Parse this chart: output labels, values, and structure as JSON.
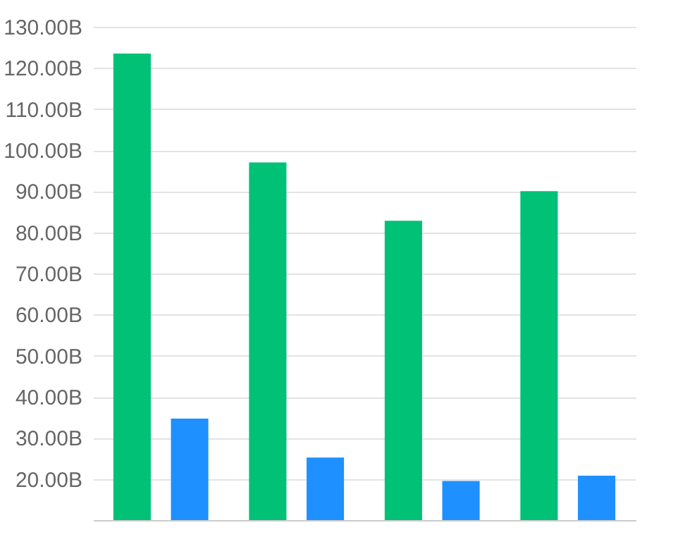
{
  "chart_data": {
    "type": "bar",
    "categories": [
      null,
      null,
      null,
      null
    ],
    "series": [
      {
        "color": "#00c176",
        "values": [
          123.5,
          97,
          82.8,
          90
        ]
      },
      {
        "color": "#1e90ff",
        "values": [
          34.7,
          25.2,
          19.5,
          20.8
        ]
      }
    ],
    "ylim": [
      10,
      130
    ],
    "yticks": [
      {
        "value": 20,
        "label": "20.00B"
      },
      {
        "value": 30,
        "label": "30.00B"
      },
      {
        "value": 40,
        "label": "40.00B"
      },
      {
        "value": 50,
        "label": "50.00B"
      },
      {
        "value": 60,
        "label": "60.00B"
      },
      {
        "value": 70,
        "label": "70.00B"
      },
      {
        "value": 80,
        "label": "80.00B"
      },
      {
        "value": 90,
        "label": "90.00B"
      },
      {
        "value": 100,
        "label": "100.00B"
      },
      {
        "value": 110,
        "label": "110.00B"
      },
      {
        "value": 120,
        "label": "120.00B"
      },
      {
        "value": 130,
        "label": "130.00B"
      }
    ],
    "grid": "y",
    "tick_labels": "y"
  }
}
